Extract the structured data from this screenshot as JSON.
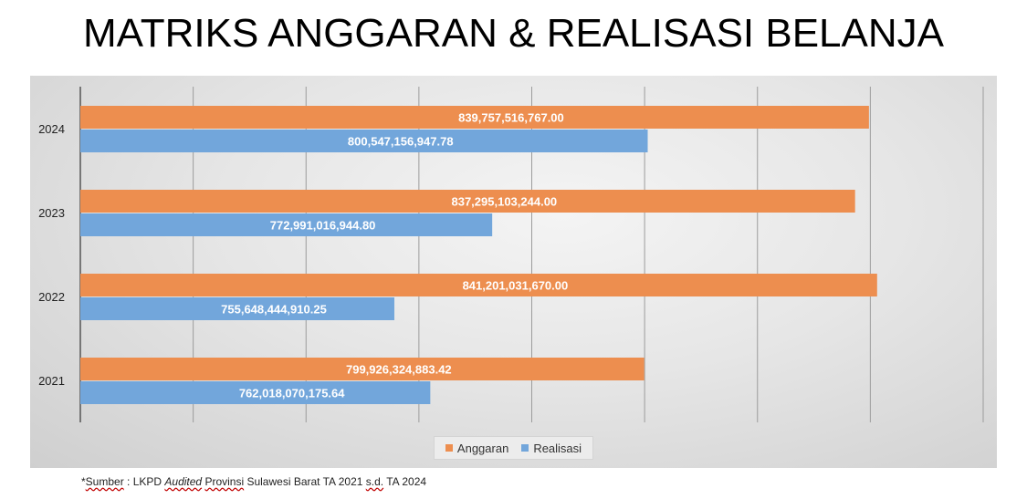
{
  "title": "MATRIKS ANGGARAN & REALISASI BELANJA",
  "chart_data": {
    "type": "bar",
    "orientation": "horizontal",
    "categories": [
      "2024",
      "2023",
      "2022",
      "2021"
    ],
    "series": [
      {
        "name": "Anggaran",
        "color": "#ED8E4F",
        "values": [
          839757516767.0,
          837295103244.0,
          841201031670.0,
          799926324883.42
        ],
        "labels": [
          "839,757,516,767.00",
          "837,295,103,244.00",
          "841,201,031,670.00",
          "799,926,324,883.42"
        ]
      },
      {
        "name": "Realisasi",
        "color": "#72A6DB",
        "values": [
          800547156947.78,
          772991016944.8,
          755648444910.25,
          762018070175.64
        ],
        "labels": [
          "800,547,156,947.78",
          "772,991,016,944.80",
          "755,648,444,910.25",
          "762,018,070,175.64"
        ]
      }
    ],
    "xlim": [
      700000000000,
      860000000000
    ],
    "grid": true,
    "legend_position": "bottom"
  },
  "legend": {
    "anggaran": "Anggaran",
    "realisasi": "Realisasi"
  },
  "footnote": {
    "prefix": "*",
    "sumber": "Sumber",
    "mid1": " : LKPD ",
    "audited": "Audited",
    "mid2": " ",
    "provinsi": "Provinsi",
    "mid3": " Sulawesi Barat TA 2021 ",
    "sd": "s.d.",
    "end": " TA 2024"
  }
}
